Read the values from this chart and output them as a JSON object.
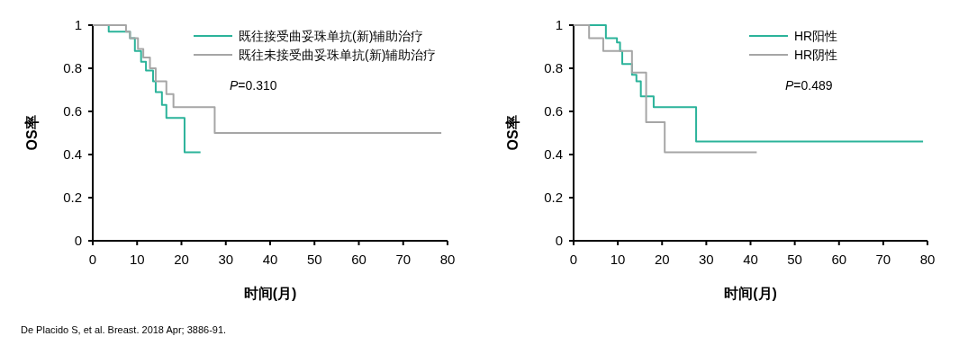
{
  "chart_data": [
    {
      "type": "step",
      "xlabel": "时间(月)",
      "ylabel": "OS率",
      "xlim": [
        0,
        80
      ],
      "ylim": [
        0,
        1
      ],
      "xticks": [
        0,
        10,
        20,
        30,
        40,
        50,
        60,
        70,
        80
      ],
      "yticks": [
        0,
        0.2,
        0.4,
        0.6,
        0.8,
        1
      ],
      "grid": false,
      "legend": "top right",
      "marker": "none",
      "line_style": "solid",
      "annotations": [
        "*P*=0.310",
        "De Placido S, et al. Breast. 2018 Apr; 3886-91."
      ],
      "series": [
        {
          "name": "既往接受曲妥珠单抗(新)辅助治疗",
          "color": "#2bb39a",
          "x": [
            0,
            3.6,
            8.4,
            9.5,
            10.9,
            12,
            13.6,
            14.2,
            15.6,
            16.6,
            20.7,
            24.3
          ],
          "values": [
            1,
            0.97,
            0.94,
            0.88,
            0.83,
            0.79,
            0.74,
            0.69,
            0.63,
            0.57,
            0.41,
            0.41
          ]
        },
        {
          "name": "既往未接受曲妥珠单抗(新)辅助治疗",
          "color": "#a6a6a6",
          "x": [
            0,
            7.5,
            8.4,
            10.2,
            11.4,
            12.9,
            14.2,
            16.6,
            18.2,
            27.5,
            78.6
          ],
          "values": [
            1,
            0.97,
            0.94,
            0.89,
            0.85,
            0.8,
            0.74,
            0.68,
            0.62,
            0.5,
            0.5
          ]
        }
      ]
    },
    {
      "type": "step",
      "xlabel": "时间(月)",
      "ylabel": "OS率",
      "xlim": [
        0,
        80
      ],
      "ylim": [
        0,
        1
      ],
      "xticks": [
        0,
        10,
        20,
        30,
        40,
        50,
        60,
        70,
        80
      ],
      "yticks": [
        0,
        0.2,
        0.4,
        0.6,
        0.8,
        1
      ],
      "grid": false,
      "legend": "top right",
      "marker": "none",
      "line_style": "solid",
      "annotations": [
        "*P*=0.489"
      ],
      "series": [
        {
          "name": "HR阳性",
          "color": "#2bb39a",
          "x": [
            0,
            7.3,
            9.8,
            10.5,
            11,
            13.2,
            14.2,
            15.2,
            18.1,
            27.7,
            79
          ],
          "values": [
            1,
            0.94,
            0.92,
            0.88,
            0.82,
            0.77,
            0.74,
            0.67,
            0.62,
            0.46,
            0.46
          ]
        },
        {
          "name": "HR阴性",
          "color": "#a6a6a6",
          "x": [
            0,
            3.5,
            6.7,
            13.2,
            16.4,
            20.6,
            41.4
          ],
          "values": [
            1,
            0.94,
            0.88,
            0.78,
            0.55,
            0.41,
            0.41
          ]
        }
      ]
    }
  ]
}
